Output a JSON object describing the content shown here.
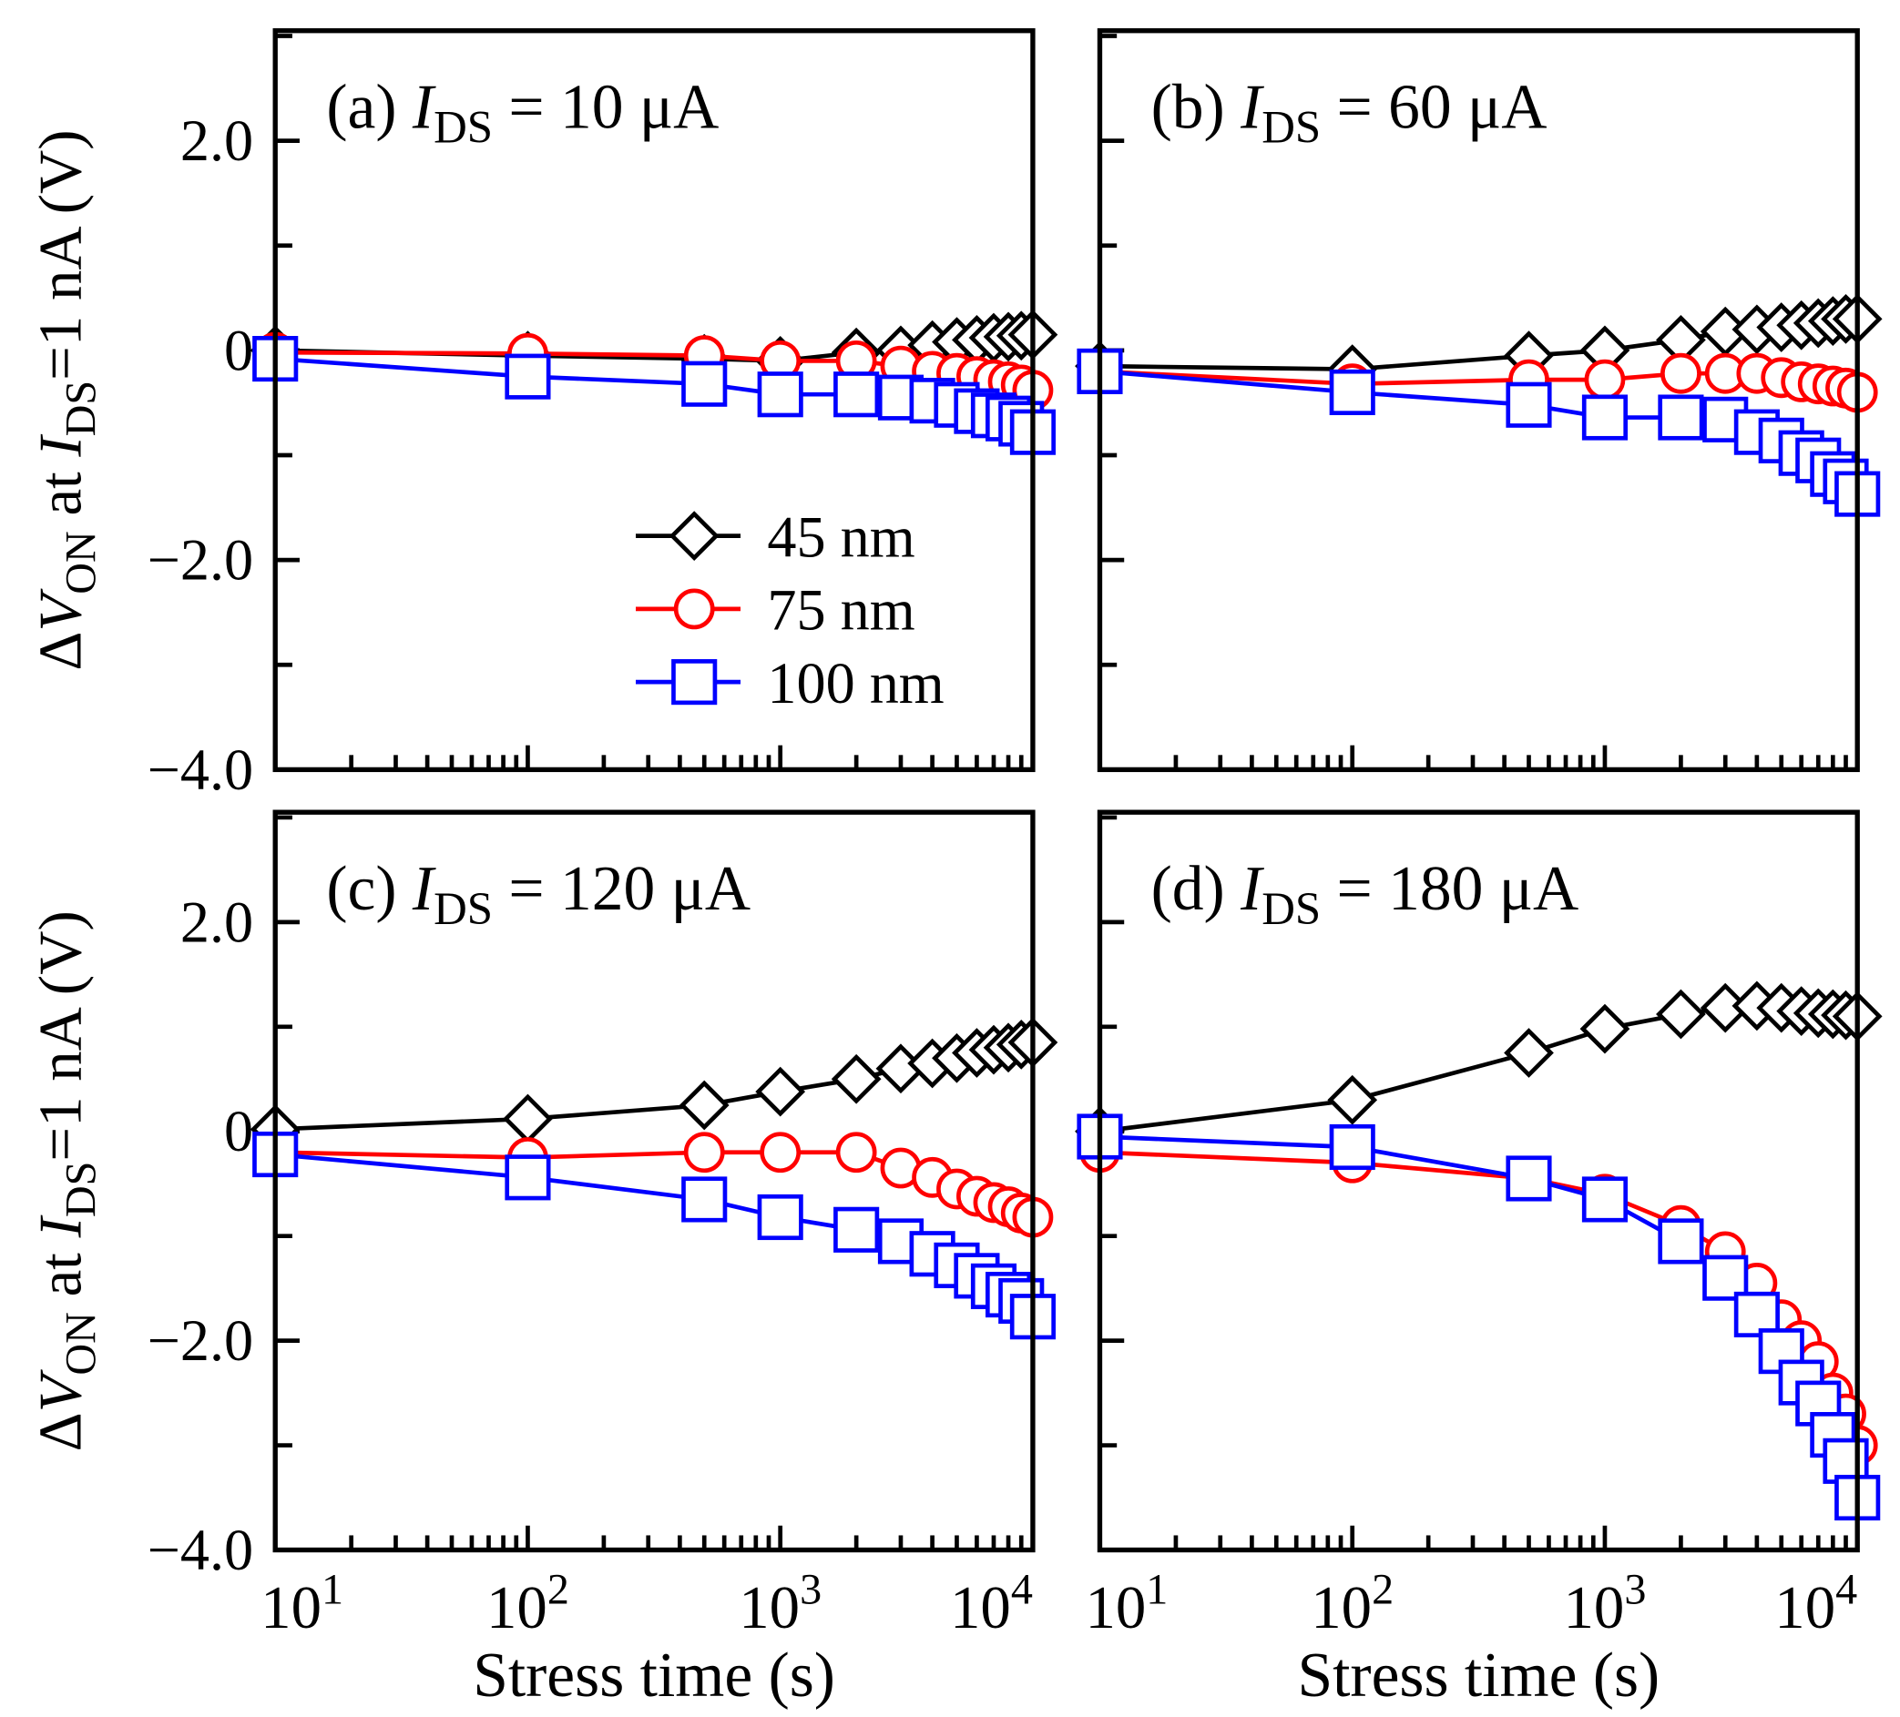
{
  "chart_data": [
    {
      "type": "line",
      "panel": "(a)",
      "title_prefix": "(a) ",
      "title_var": "I",
      "title_sub": "DS",
      "title_value": " = 10 μA",
      "xscale": "log",
      "xlim": [
        10,
        10000
      ],
      "ylim": [
        -4.0,
        3.05
      ],
      "x": [
        10,
        100,
        500,
        1000,
        2000,
        3000,
        4000,
        5000,
        6000,
        7000,
        8000,
        9000,
        10000
      ],
      "series": [
        {
          "name": "45 nm",
          "color": "#000000",
          "marker": "diamond",
          "values": [
            0,
            -0.05,
            -0.08,
            -0.1,
            -0.02,
            0,
            0.05,
            0.08,
            0.1,
            0.12,
            0.13,
            0.14,
            0.15
          ]
        },
        {
          "name": "75 nm",
          "color": "#ff0000",
          "marker": "circle",
          "values": [
            -0.02,
            -0.03,
            -0.05,
            -0.1,
            -0.1,
            -0.15,
            -0.2,
            -0.22,
            -0.25,
            -0.28,
            -0.3,
            -0.33,
            -0.38
          ]
        },
        {
          "name": "100 nm",
          "color": "#0000ff",
          "marker": "square",
          "values": [
            -0.08,
            -0.25,
            -0.32,
            -0.42,
            -0.42,
            -0.45,
            -0.48,
            -0.52,
            -0.58,
            -0.62,
            -0.65,
            -0.7,
            -0.78
          ]
        }
      ]
    },
    {
      "type": "line",
      "panel": "(b)",
      "title_prefix": "(b) ",
      "title_var": "I",
      "title_sub": "DS",
      "title_value": " = 60 μA",
      "xscale": "log",
      "xlim": [
        10,
        10000
      ],
      "ylim": [
        -4.0,
        3.05
      ],
      "x": [
        10,
        100,
        500,
        1000,
        2000,
        3000,
        4000,
        5000,
        6000,
        7000,
        8000,
        9000,
        10000
      ],
      "series": [
        {
          "name": "45 nm",
          "color": "#000000",
          "marker": "diamond",
          "values": [
            -0.15,
            -0.18,
            -0.05,
            0,
            0.1,
            0.18,
            0.2,
            0.22,
            0.24,
            0.26,
            0.28,
            0.3,
            0.3
          ]
        },
        {
          "name": "75 nm",
          "color": "#ff0000",
          "marker": "circle",
          "values": [
            -0.2,
            -0.32,
            -0.28,
            -0.28,
            -0.22,
            -0.22,
            -0.22,
            -0.26,
            -0.3,
            -0.32,
            -0.34,
            -0.36,
            -0.4
          ]
        },
        {
          "name": "100 nm",
          "color": "#0000ff",
          "marker": "square",
          "values": [
            -0.2,
            -0.4,
            -0.52,
            -0.64,
            -0.64,
            -0.66,
            -0.78,
            -0.86,
            -0.98,
            -1.05,
            -1.18,
            -1.25,
            -1.37
          ]
        }
      ]
    },
    {
      "type": "line",
      "panel": "(c)",
      "title_prefix": "(c) ",
      "title_var": "I",
      "title_sub": "DS",
      "title_value": " = 120 μA",
      "xscale": "log",
      "xlim": [
        10,
        10000
      ],
      "ylim": [
        -4.0,
        3.05
      ],
      "x": [
        10,
        100,
        500,
        1000,
        2000,
        3000,
        4000,
        5000,
        6000,
        7000,
        8000,
        9000,
        10000
      ],
      "series": [
        {
          "name": "45 nm",
          "color": "#000000",
          "marker": "diamond",
          "values": [
            0.02,
            0.12,
            0.25,
            0.38,
            0.5,
            0.6,
            0.65,
            0.7,
            0.75,
            0.78,
            0.8,
            0.83,
            0.85
          ]
        },
        {
          "name": "75 nm",
          "color": "#ff0000",
          "marker": "circle",
          "values": [
            -0.2,
            -0.25,
            -0.2,
            -0.2,
            -0.2,
            -0.35,
            -0.44,
            -0.55,
            -0.62,
            -0.68,
            -0.72,
            -0.78,
            -0.82
          ]
        },
        {
          "name": "100 nm",
          "color": "#0000ff",
          "marker": "square",
          "values": [
            -0.22,
            -0.44,
            -0.65,
            -0.82,
            -0.94,
            -1.05,
            -1.17,
            -1.28,
            -1.38,
            -1.48,
            -1.56,
            -1.62,
            -1.77
          ]
        }
      ]
    },
    {
      "type": "line",
      "panel": "(d)",
      "title_prefix": "(d) ",
      "title_var": "I",
      "title_sub": "DS",
      "title_value": " = 180 μA",
      "xscale": "log",
      "xlim": [
        10,
        10000
      ],
      "ylim": [
        -4.0,
        3.05
      ],
      "x": [
        10,
        100,
        500,
        1000,
        2000,
        3000,
        4000,
        5000,
        6000,
        7000,
        8000,
        9000,
        10000
      ],
      "series": [
        {
          "name": "45 nm",
          "color": "#000000",
          "marker": "diamond",
          "values": [
            0.0,
            0.3,
            0.75,
            0.98,
            1.12,
            1.18,
            1.2,
            1.18,
            1.15,
            1.13,
            1.12,
            1.11,
            1.1
          ]
        },
        {
          "name": "75 nm",
          "color": "#ff0000",
          "marker": "circle",
          "values": [
            -0.2,
            -0.3,
            -0.45,
            -0.6,
            -0.9,
            -1.15,
            -1.45,
            -1.8,
            -2.0,
            -2.2,
            -2.5,
            -2.7,
            -3.0
          ]
        },
        {
          "name": "100 nm",
          "color": "#0000ff",
          "marker": "square",
          "values": [
            -0.05,
            -0.15,
            -0.45,
            -0.65,
            -1.05,
            -1.4,
            -1.75,
            -2.1,
            -2.4,
            -2.6,
            -2.9,
            -3.15,
            -3.5
          ]
        }
      ]
    }
  ],
  "axes": {
    "ylabel_delta": "Δ",
    "ylabel_v": "V",
    "ylabel_on": "ON",
    "ylabel_mid": " at ",
    "ylabel_i": "I",
    "ylabel_ds": "DS",
    "ylabel_tail": "=1 nA (V)",
    "xlabel": "Stress time (s)",
    "yticks": [
      {
        "value": 2.0,
        "label": "2.0"
      },
      {
        "value": 0,
        "label": "0"
      },
      {
        "value": -2.0,
        "label": "−2.0"
      },
      {
        "value": -4.0,
        "label": "−4.0"
      }
    ],
    "xticks": [
      {
        "value": 10,
        "base": "10",
        "exp": "1"
      },
      {
        "value": 100,
        "base": "10",
        "exp": "2"
      },
      {
        "value": 1000,
        "base": "10",
        "exp": "3"
      },
      {
        "value": 10000,
        "base": "10",
        "exp": "4"
      }
    ]
  },
  "legend": {
    "placement": "panel (a) lower-right",
    "items": [
      "45 nm",
      "75 nm",
      "100 nm"
    ]
  }
}
